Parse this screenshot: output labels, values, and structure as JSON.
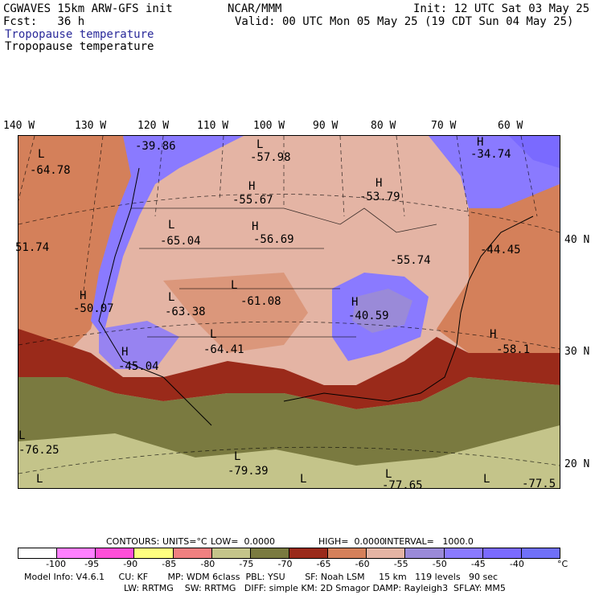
{
  "header": {
    "model": "CGWAVES 15km ARW-GFS init",
    "org": "NCAR/MMM",
    "init": "Init: 12 UTC Sat 03 May 25",
    "fcst": "Fcst:   36 h",
    "valid": "Valid: 00 UTC Mon 05 May 25 (19 CDT Sun 04 May 25)",
    "field1": "Tropopause temperature",
    "field2": "Tropopause temperature"
  },
  "longitudes": [
    "140 W",
    "130 W",
    "120 W",
    "110 W",
    "100 W",
    "90 W",
    "80 W",
    "70 W",
    "60 W"
  ],
  "latitudes": [
    "40 N",
    "30 N",
    "20 N"
  ],
  "map_labels": [
    {
      "type": "L",
      "value": "-64.78"
    },
    {
      "type": "L",
      "value": "-39.86"
    },
    {
      "type": "L",
      "value": "-57.98"
    },
    {
      "type": "H",
      "value": "-55.67"
    },
    {
      "type": "H",
      "value": "-53.79"
    },
    {
      "type": "H",
      "value": "-34.74"
    },
    {
      "type": "",
      "value": "51.74"
    },
    {
      "type": "L",
      "value": "-65.04"
    },
    {
      "type": "H",
      "value": "-56.69"
    },
    {
      "type": "",
      "value": "-55.74"
    },
    {
      "type": "",
      "value": "-44.45"
    },
    {
      "type": "H",
      "value": "-50.07"
    },
    {
      "type": "L",
      "value": "-63.38"
    },
    {
      "type": "L",
      "value": "-61.08"
    },
    {
      "type": "H",
      "value": "-40.59"
    },
    {
      "type": "L",
      "value": "-64.41"
    },
    {
      "type": "H",
      "value": "-45.04"
    },
    {
      "type": "H",
      "value": "-58.1"
    },
    {
      "type": "L",
      "value": "-76.25"
    },
    {
      "type": "L",
      "value": "-79.39"
    },
    {
      "type": "L",
      "value": ""
    },
    {
      "type": "L",
      "value": ""
    },
    {
      "type": "L",
      "value": "-77.65"
    },
    {
      "type": "",
      "value": "-77.5"
    },
    {
      "type": "L",
      "value": ""
    }
  ],
  "contour_info": {
    "contours": "CONTOURS:",
    "units": "UNITS=°C",
    "low": "LOW=  0.0000",
    "high": "HIGH=  0.0000",
    "interval": "INTERVAL=   1000.0"
  },
  "colorbar": {
    "colors": [
      "#ffffff",
      "#ff80ff",
      "#ff4fd8",
      "#ffff80",
      "#f08080",
      "#c4c48a",
      "#7a7a40",
      "#9a2a1a",
      "#d4805a",
      "#e4b4a4",
      "#9a8ad8",
      "#8a7aff",
      "#7a6aff",
      "#7070f8"
    ],
    "ticks": [
      "-100",
      "-95",
      "-90",
      "-85",
      "-80",
      "-75",
      "-70",
      "-65",
      "-60",
      "-55",
      "-50",
      "-45",
      "-40",
      "°C"
    ]
  },
  "footer": {
    "line1": "Model Info: V4.6.1     CU: KF       MP: WDM 6class  PBL: YSU       SF: Noah LSM     15 km   119 levels   90 sec",
    "line2": "LW: RRTMG    SW: RRTMG   DIFF: simple KM: 2D Smagor DAMP: Rayleigh3  SFLAY: MM5"
  }
}
